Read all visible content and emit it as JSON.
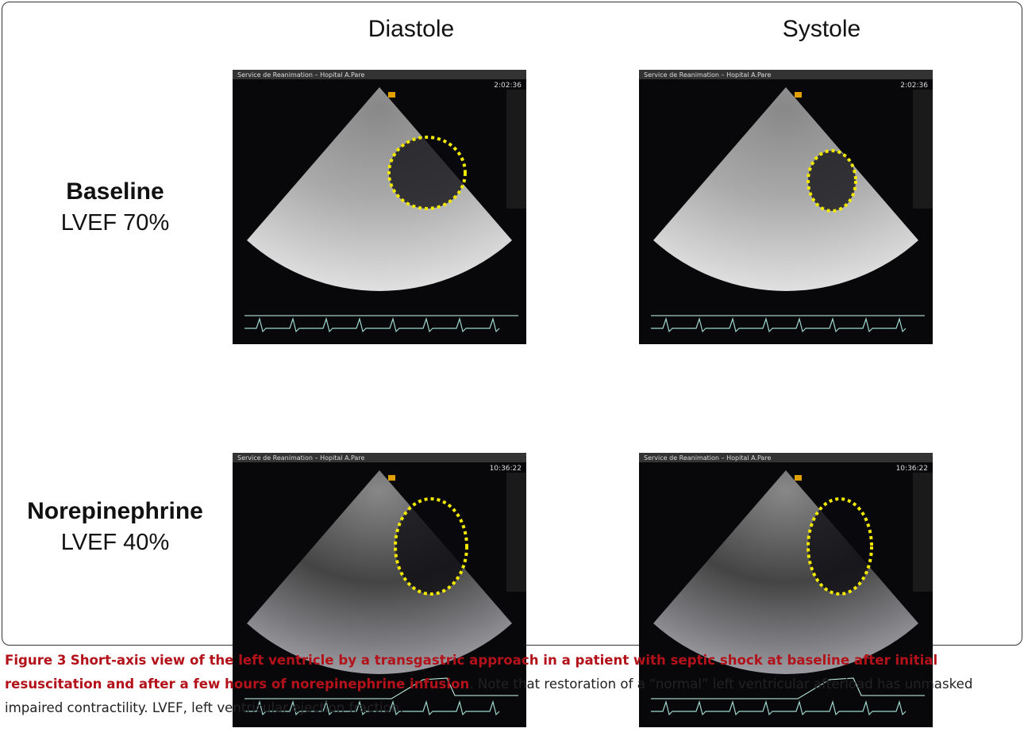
{
  "figure": {
    "column_headers": [
      "Diastole",
      "Systole"
    ],
    "rows": [
      {
        "label": "Baseline",
        "sublabel": "LVEF 70%"
      },
      {
        "label": "Norepinephrine",
        "sublabel": "LVEF 40%"
      }
    ],
    "panels": [
      {
        "header": "Service de Reanimation – Hopital A.Pare",
        "time": "2:02:36"
      },
      {
        "header": "Service de Reanimation – Hopital A.Pare",
        "time": "2:02:36"
      },
      {
        "header": "Service de Reanimation – Hopital A.Pare",
        "time": "10:36:22"
      },
      {
        "header": "Service de Reanimation – Hopital A.Pare",
        "time": "10:36:22"
      }
    ],
    "caption": {
      "label": "Figure 3",
      "title": "Short-axis view of the left ventricle by a transgastric approach in a patient with septic shock at baseline after initial resuscitation and after a few hours of norepinephrine infusion",
      "text": ". Note that restoration of a “normal” left ventricular afterload has unmasked impaired contractility. LVEF, left ventricular ejection fraction."
    }
  }
}
